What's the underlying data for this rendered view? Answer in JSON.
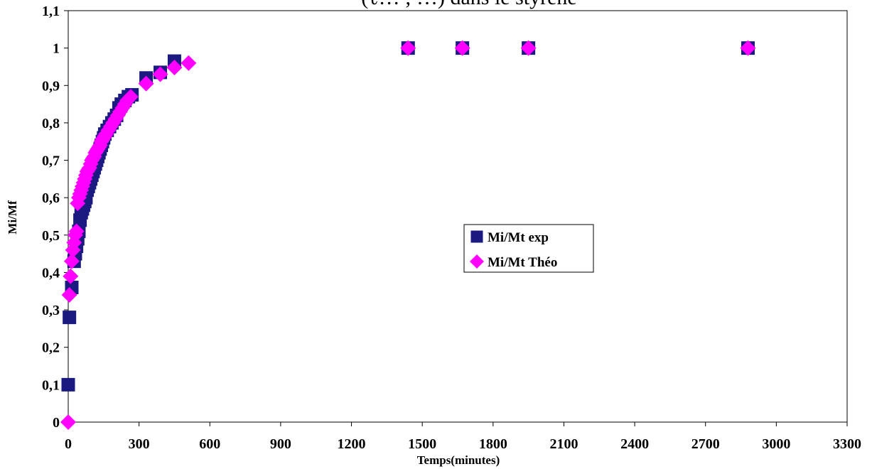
{
  "chart_data": {
    "type": "scatter",
    "title": "(ℓ… ; …) dans le styrène",
    "xlabel": "Temps(minutes)",
    "ylabel": "Mi/Mf",
    "xlim": [
      0,
      3300
    ],
    "ylim": [
      0,
      1.1
    ],
    "x_ticks": [
      "0",
      "300",
      "600",
      "900",
      "1200",
      "1500",
      "1800",
      "2100",
      "2400",
      "2700",
      "3000",
      "3300"
    ],
    "y_ticks": [
      "0",
      "0,1",
      "0,2",
      "0,3",
      "0,4",
      "0,5",
      "0,6",
      "0,7",
      "0,8",
      "0,9",
      "1",
      "1,1"
    ],
    "grid": false,
    "legend_position": "center-right",
    "series": [
      {
        "name": "Mi/Mt exp",
        "marker": "square",
        "color": "#1a1a80",
        "points": [
          [
            0,
            0.1
          ],
          [
            5,
            0.28
          ],
          [
            15,
            0.36
          ],
          [
            25,
            0.43
          ],
          [
            30,
            0.45
          ],
          [
            35,
            0.47
          ],
          [
            40,
            0.49
          ],
          [
            45,
            0.51
          ],
          [
            50,
            0.54
          ],
          [
            55,
            0.56
          ],
          [
            60,
            0.57
          ],
          [
            65,
            0.58
          ],
          [
            70,
            0.59
          ],
          [
            75,
            0.6
          ],
          [
            80,
            0.62
          ],
          [
            85,
            0.63
          ],
          [
            90,
            0.64
          ],
          [
            95,
            0.65
          ],
          [
            100,
            0.66
          ],
          [
            105,
            0.67
          ],
          [
            110,
            0.68
          ],
          [
            115,
            0.69
          ],
          [
            120,
            0.7
          ],
          [
            125,
            0.71
          ],
          [
            130,
            0.72
          ],
          [
            135,
            0.73
          ],
          [
            140,
            0.74
          ],
          [
            145,
            0.75
          ],
          [
            150,
            0.76
          ],
          [
            155,
            0.77
          ],
          [
            165,
            0.78
          ],
          [
            175,
            0.79
          ],
          [
            185,
            0.8
          ],
          [
            195,
            0.81
          ],
          [
            205,
            0.82
          ],
          [
            215,
            0.84
          ],
          [
            225,
            0.85
          ],
          [
            240,
            0.86
          ],
          [
            255,
            0.87
          ],
          [
            270,
            0.875
          ],
          [
            330,
            0.92
          ],
          [
            390,
            0.935
          ],
          [
            450,
            0.965
          ],
          [
            1440,
            1.0
          ],
          [
            1670,
            1.0
          ],
          [
            1950,
            1.0
          ],
          [
            2880,
            1.0
          ]
        ]
      },
      {
        "name": "Mi/Mt Théo",
        "marker": "diamond",
        "color": "#ff00ff",
        "points": [
          [
            0,
            0.0
          ],
          [
            5,
            0.34
          ],
          [
            10,
            0.39
          ],
          [
            15,
            0.43
          ],
          [
            20,
            0.46
          ],
          [
            25,
            0.48
          ],
          [
            30,
            0.5
          ],
          [
            35,
            0.51
          ],
          [
            40,
            0.585
          ],
          [
            45,
            0.6
          ],
          [
            50,
            0.61
          ],
          [
            55,
            0.62
          ],
          [
            60,
            0.63
          ],
          [
            65,
            0.64
          ],
          [
            70,
            0.65
          ],
          [
            75,
            0.66
          ],
          [
            80,
            0.67
          ],
          [
            85,
            0.675
          ],
          [
            90,
            0.68
          ],
          [
            95,
            0.69
          ],
          [
            100,
            0.7
          ],
          [
            105,
            0.705
          ],
          [
            110,
            0.71
          ],
          [
            115,
            0.72
          ],
          [
            120,
            0.725
          ],
          [
            125,
            0.73
          ],
          [
            130,
            0.735
          ],
          [
            135,
            0.74
          ],
          [
            140,
            0.75
          ],
          [
            145,
            0.755
          ],
          [
            150,
            0.76
          ],
          [
            155,
            0.765
          ],
          [
            160,
            0.77
          ],
          [
            170,
            0.78
          ],
          [
            180,
            0.79
          ],
          [
            190,
            0.8
          ],
          [
            200,
            0.81
          ],
          [
            210,
            0.82
          ],
          [
            220,
            0.83
          ],
          [
            230,
            0.84
          ],
          [
            240,
            0.85
          ],
          [
            250,
            0.86
          ],
          [
            265,
            0.87
          ],
          [
            330,
            0.905
          ],
          [
            390,
            0.93
          ],
          [
            450,
            0.948
          ],
          [
            510,
            0.96
          ],
          [
            1440,
            1.0
          ],
          [
            1670,
            1.0
          ],
          [
            1950,
            1.0
          ],
          [
            2880,
            1.0
          ]
        ]
      }
    ]
  }
}
